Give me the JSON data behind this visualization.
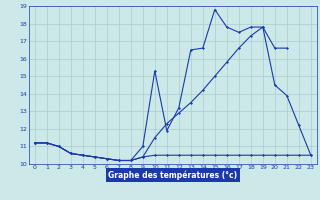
{
  "xlabel": "Graphe des températures (°c)",
  "bg_color": "#cce8e8",
  "grid_color": "#aacccc",
  "line_color": "#1a3aaa",
  "xlabel_bg": "#1a3aaa",
  "xlabel_fg": "#ffffff",
  "xlim": [
    -0.5,
    23.5
  ],
  "ylim": [
    10,
    19
  ],
  "yticks": [
    10,
    11,
    12,
    13,
    14,
    15,
    16,
    17,
    18,
    19
  ],
  "xticks": [
    0,
    1,
    2,
    3,
    4,
    5,
    6,
    7,
    8,
    9,
    10,
    11,
    12,
    13,
    14,
    15,
    16,
    17,
    18,
    19,
    20,
    21,
    22,
    23
  ],
  "series1_x": [
    0,
    1,
    2,
    3,
    4,
    5,
    6,
    7,
    8,
    9,
    10,
    11,
    12,
    13,
    14,
    15,
    16,
    17,
    18,
    19,
    20,
    21,
    22,
    23
  ],
  "series1_y": [
    11.2,
    11.2,
    11.0,
    10.6,
    10.5,
    10.4,
    10.3,
    10.2,
    10.2,
    10.4,
    10.5,
    10.5,
    10.5,
    10.5,
    10.5,
    10.5,
    10.5,
    10.5,
    10.5,
    10.5,
    10.5,
    10.5,
    10.5,
    10.5
  ],
  "series2_x": [
    0,
    1,
    2,
    3,
    4,
    5,
    6,
    7,
    8,
    9,
    10,
    11,
    12,
    13,
    14,
    15,
    16,
    17,
    18,
    19,
    20,
    21
  ],
  "series2_y": [
    11.2,
    11.2,
    11.0,
    10.6,
    10.5,
    10.4,
    10.3,
    10.2,
    10.2,
    11.0,
    15.3,
    11.9,
    13.2,
    16.5,
    16.6,
    18.8,
    17.8,
    17.5,
    17.8,
    17.8,
    16.6,
    16.6
  ],
  "series3_x": [
    0,
    1,
    2,
    3,
    4,
    5,
    6,
    7,
    8,
    9,
    10,
    11,
    12,
    13,
    14,
    15,
    16,
    17,
    18,
    19,
    20,
    21,
    22,
    23
  ],
  "series3_y": [
    11.2,
    11.2,
    11.0,
    10.6,
    10.5,
    10.4,
    10.3,
    10.2,
    10.2,
    10.4,
    11.5,
    12.3,
    12.9,
    13.5,
    14.2,
    15.0,
    15.8,
    16.6,
    17.3,
    17.8,
    14.5,
    13.9,
    12.2,
    10.5
  ]
}
